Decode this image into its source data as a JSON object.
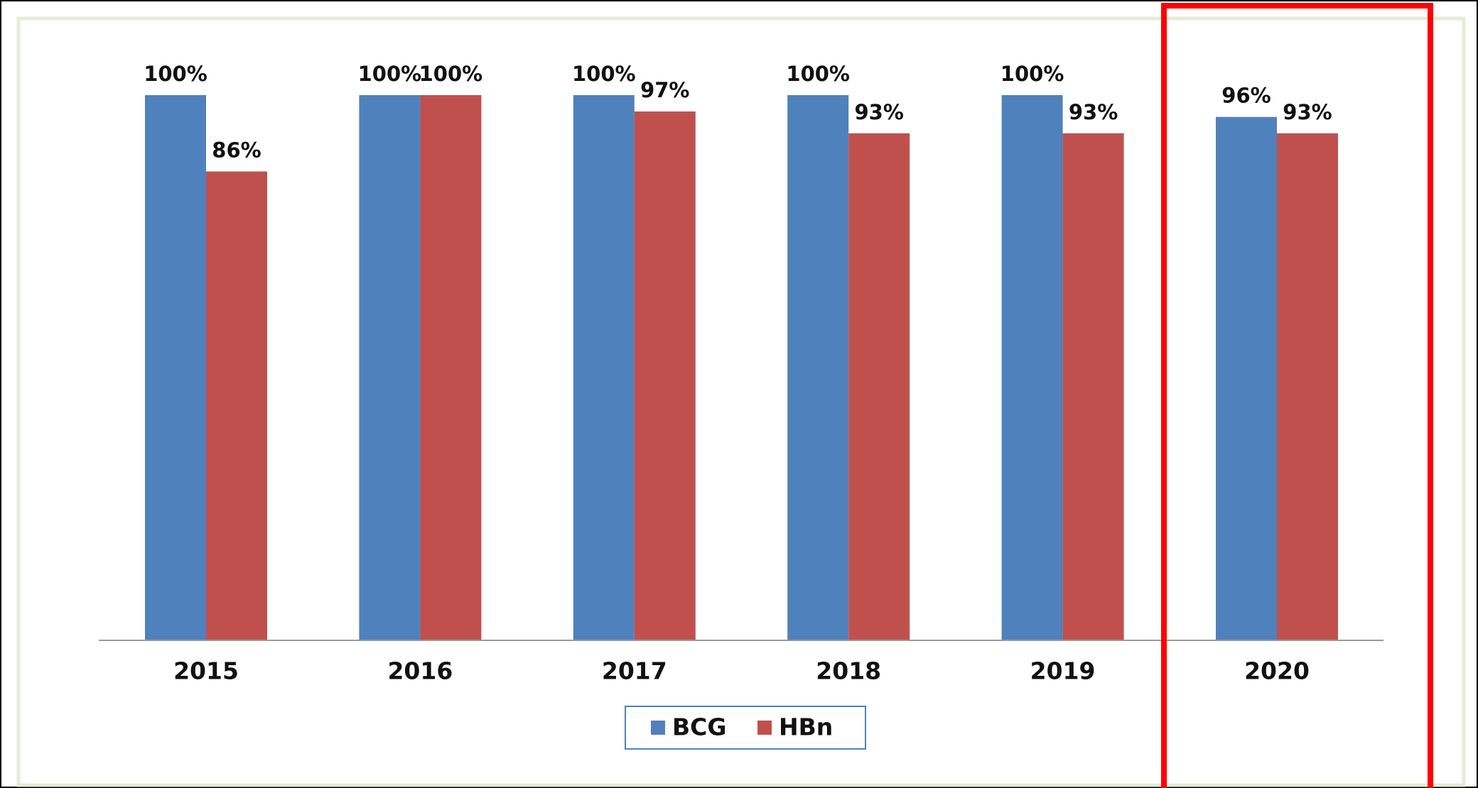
{
  "chart_data": {
    "type": "bar",
    "categories": [
      "2015",
      "2016",
      "2017",
      "2018",
      "2019",
      "2020"
    ],
    "series": [
      {
        "name": "BCG",
        "color": "#4f81bd",
        "values": [
          100,
          100,
          100,
          100,
          100,
          96
        ],
        "value_labels": [
          "100%",
          "100%",
          "100%",
          "100%",
          "100%",
          "96%"
        ]
      },
      {
        "name": "HBn",
        "color": "#c0504d",
        "values": [
          86,
          100,
          97,
          93,
          93,
          93
        ],
        "value_labels": [
          "86%",
          "100%",
          "97%",
          "93%",
          "93%",
          "93%"
        ]
      }
    ],
    "ylim": [
      0,
      100
    ],
    "legend": "bottom"
  }
}
